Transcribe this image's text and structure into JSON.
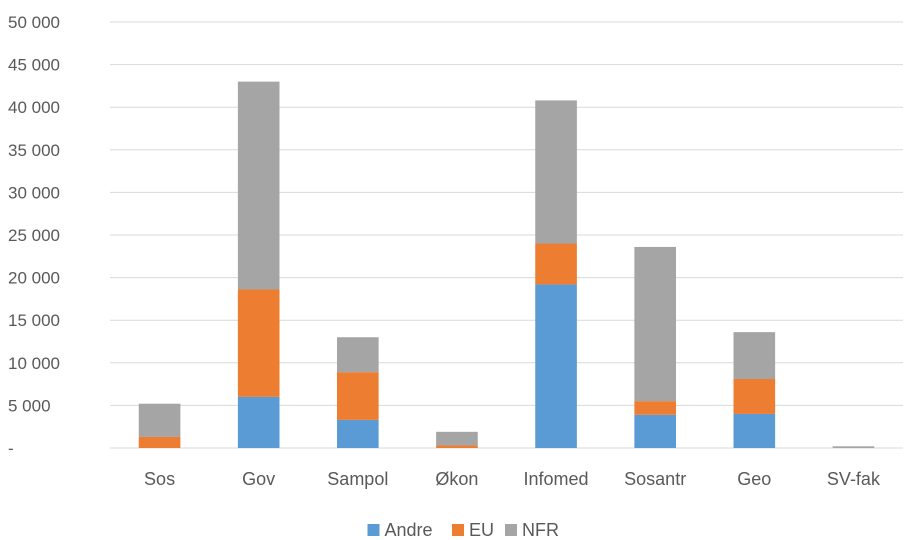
{
  "chart_data": {
    "type": "bar",
    "stacked": true,
    "categories": [
      "Sos",
      "Gov",
      "Sampol",
      "Økon",
      "Infomed",
      "Sosantr",
      "Geo",
      "SV-fak"
    ],
    "series": [
      {
        "name": "Andre",
        "color": "#5b9bd5",
        "values": [
          0,
          6000,
          3300,
          0,
          19200,
          3900,
          4000,
          0
        ]
      },
      {
        "name": "EU",
        "color": "#ed7d31",
        "values": [
          1300,
          12600,
          5600,
          300,
          4800,
          1600,
          4100,
          0
        ]
      },
      {
        "name": "NFR",
        "color": "#a5a5a5",
        "values": [
          3900,
          24400,
          4100,
          1600,
          16800,
          18100,
          5500,
          200
        ]
      }
    ],
    "ylim": [
      0,
      50000
    ],
    "yticks": [
      0,
      5000,
      10000,
      15000,
      20000,
      25000,
      30000,
      35000,
      40000,
      45000,
      50000
    ],
    "ytick_labels": [
      "-",
      "5 000",
      "10 000",
      "15 000",
      "20 000",
      "25 000",
      "30 000",
      "35 000",
      "40 000",
      "45 000",
      "50 000"
    ],
    "title": "",
    "xlabel": "",
    "ylabel": "",
    "grid": true,
    "legend_position": "bottom"
  }
}
